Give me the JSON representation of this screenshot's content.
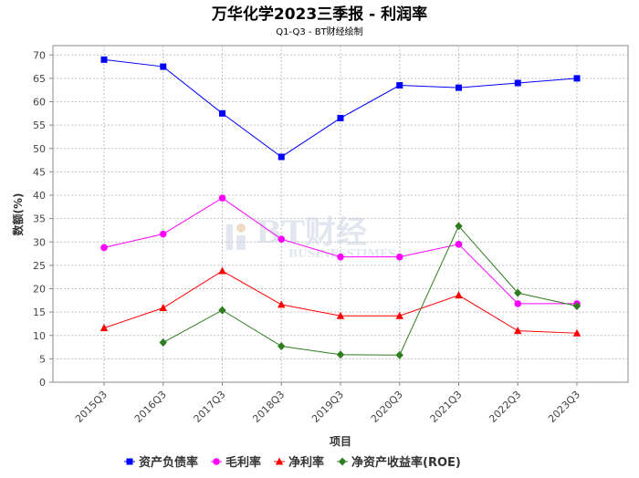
{
  "chart_data": {
    "type": "line",
    "title": "万华化学2023三季报 - 利润率",
    "subtitle": "Q1-Q3 - BT财经绘制",
    "xlabel": "项目",
    "ylabel": "数额(%)",
    "ylim": [
      0,
      72
    ],
    "yticks": [
      0,
      5,
      10,
      15,
      20,
      25,
      30,
      35,
      40,
      45,
      50,
      55,
      60,
      65,
      70
    ],
    "grid": true,
    "legend_position": "bottom",
    "categories": [
      "2015Q3",
      "2016Q3",
      "2017Q3",
      "2018Q3",
      "2019Q3",
      "2020Q3",
      "2021Q3",
      "2022Q3",
      "2023Q3"
    ],
    "series": [
      {
        "name": "资产负债率",
        "color": "#0000ff",
        "marker": "square",
        "values": [
          69.0,
          67.5,
          57.5,
          48.2,
          56.5,
          63.5,
          63.0,
          64.0,
          65.0
        ]
      },
      {
        "name": "毛利率",
        "color": "#ff00ff",
        "marker": "circle",
        "values": [
          28.8,
          31.7,
          39.4,
          30.6,
          26.8,
          26.8,
          29.5,
          16.8,
          16.8
        ]
      },
      {
        "name": "净利率",
        "color": "#ff0000",
        "marker": "triangle",
        "values": [
          11.6,
          15.9,
          23.8,
          16.6,
          14.2,
          14.2,
          18.6,
          11.0,
          10.5
        ]
      },
      {
        "name": "净资产收益率(ROE)",
        "color": "#2e7d1e",
        "marker": "diamond",
        "values": [
          null,
          8.5,
          15.4,
          7.7,
          5.9,
          5.8,
          33.4,
          19.1,
          16.3
        ]
      }
    ]
  },
  "watermark": {
    "main": "BT财经",
    "sub": "BUSINESSTIMES"
  }
}
